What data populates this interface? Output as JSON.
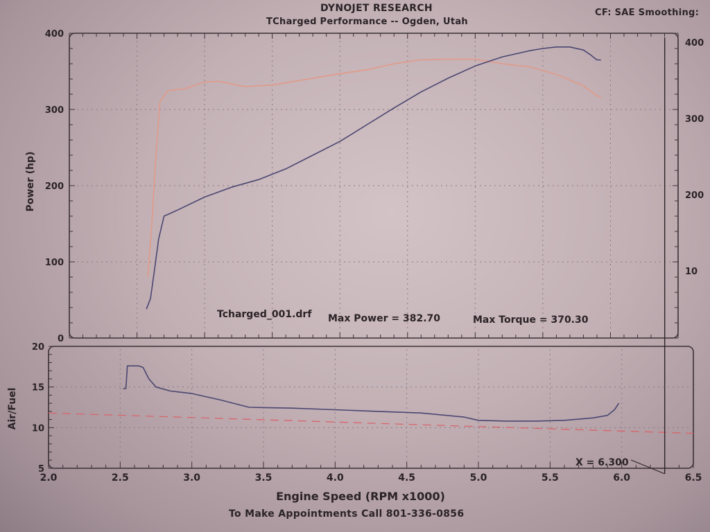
{
  "header": {
    "company": "DYNOJET RESEARCH",
    "subtitle": "TCharged Performance -- Ogden, Utah",
    "settings": "CF: SAE  Smoothing:"
  },
  "footer": {
    "phone_line": "To Make Appointments Call 801-336-0856"
  },
  "colors": {
    "power_line": "#4a4670",
    "torque_line": "#e29a88",
    "afr_line": "#4a4670",
    "afr_target": "#d9646b",
    "grid": "#8a7b82",
    "frame": "#3a3034"
  },
  "chart_data": [
    {
      "type": "line",
      "title": "",
      "ylabel": "Power (hp)",
      "xlim": [
        2.0,
        6.5
      ],
      "ylim": [
        0,
        400
      ],
      "y_ticks": [
        "0",
        "100",
        "200",
        "300",
        "400"
      ],
      "y2_ticks": [
        "",
        "10",
        "200",
        "300",
        "400"
      ],
      "grid": true,
      "annotation": {
        "file": "Tcharged_001.drf",
        "max_power_text": "Max Power = 382.70",
        "max_torque_text": "Max Torque = 370.30"
      },
      "series": [
        {
          "key": "power",
          "x": [
            2.57,
            2.6,
            2.63,
            2.66,
            2.7,
            2.8,
            3.0,
            3.2,
            3.4,
            3.6,
            3.8,
            4.0,
            4.2,
            4.4,
            4.6,
            4.8,
            5.0,
            5.2,
            5.4,
            5.5,
            5.6,
            5.7,
            5.8,
            5.85,
            5.9,
            5.93
          ],
          "y": [
            38,
            52,
            90,
            130,
            160,
            168,
            185,
            198,
            208,
            222,
            240,
            258,
            280,
            302,
            323,
            341,
            357,
            369,
            377,
            380,
            382,
            382,
            378,
            372,
            365,
            365
          ]
        },
        {
          "key": "torque",
          "x": [
            2.58,
            2.61,
            2.64,
            2.67,
            2.72,
            2.74,
            2.85,
            3.0,
            3.1,
            3.3,
            3.5,
            3.7,
            4.0,
            4.2,
            4.4,
            4.6,
            4.8,
            5.0,
            5.2,
            5.4,
            5.6,
            5.8,
            5.9,
            5.93
          ],
          "y": [
            80,
            150,
            240,
            310,
            323,
            325,
            327,
            336,
            337,
            330,
            332,
            338,
            347,
            352,
            360,
            365,
            366,
            366,
            360,
            356,
            346,
            331,
            318,
            316
          ]
        }
      ]
    },
    {
      "type": "line",
      "title": "",
      "xlabel": "Engine Speed (RPM x1000)",
      "ylabel": "Air/Fuel",
      "xlim": [
        2.0,
        6.5
      ],
      "ylim": [
        5,
        20
      ],
      "x_ticks": [
        "2.0",
        "2.5",
        "3.0",
        "3.5",
        "4.0",
        "4.5",
        "5.0",
        "5.5",
        "6.0",
        "6.5"
      ],
      "y_ticks": [
        "5",
        "10",
        "15",
        "20"
      ],
      "grid": true,
      "cursor": {
        "x": 6.3,
        "label": "X = 6.300"
      },
      "series": [
        {
          "key": "afr",
          "x": [
            2.52,
            2.54,
            2.55,
            2.63,
            2.66,
            2.7,
            2.75,
            2.85,
            3.0,
            3.2,
            3.4,
            3.7,
            4.0,
            4.3,
            4.6,
            4.9,
            5.0,
            5.2,
            5.4,
            5.6,
            5.8,
            5.9,
            5.95,
            5.98
          ],
          "y": [
            14.8,
            14.8,
            17.6,
            17.6,
            17.4,
            16.0,
            15.0,
            14.5,
            14.2,
            13.4,
            12.5,
            12.4,
            12.2,
            12.0,
            11.8,
            11.3,
            10.9,
            10.8,
            10.8,
            10.9,
            11.2,
            11.5,
            12.2,
            13.0
          ]
        },
        {
          "key": "afr_target",
          "x": [
            2.0,
            6.5
          ],
          "y": [
            11.8,
            9.3
          ]
        }
      ]
    }
  ]
}
